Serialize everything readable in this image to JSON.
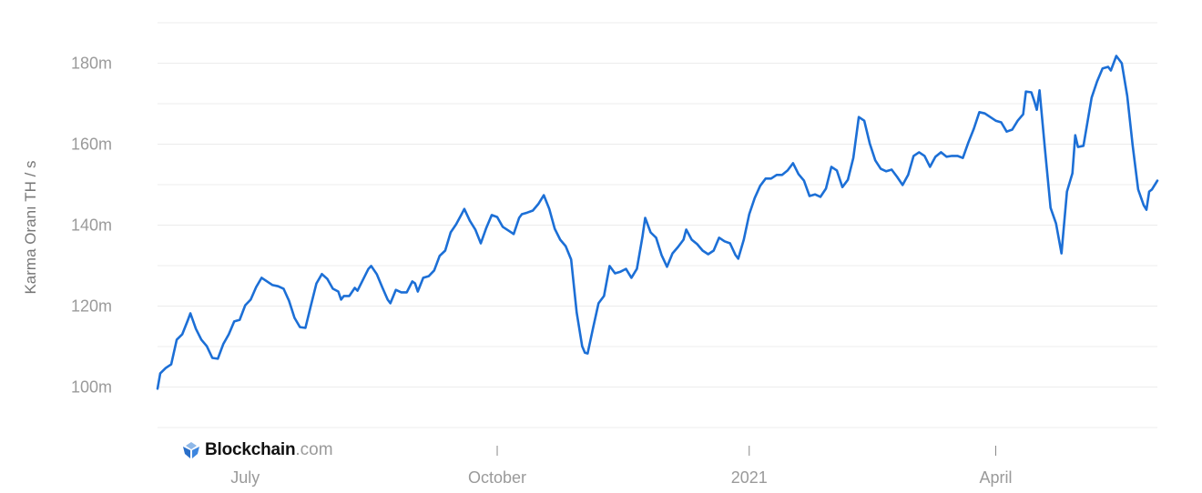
{
  "chart_data": {
    "type": "line",
    "title": "",
    "xlabel": "",
    "ylabel": "Karma Oranı TH / s",
    "ylim": [
      90,
      190
    ],
    "xlim": [
      "2020-05-30",
      "2021-05-30"
    ],
    "grid": true,
    "yticks": [
      {
        "value": 100,
        "label": "100m"
      },
      {
        "value": 120,
        "label": "120m"
      },
      {
        "value": 140,
        "label": "140m"
      },
      {
        "value": 160,
        "label": "160m"
      },
      {
        "value": 180,
        "label": "180m"
      }
    ],
    "ygrid_step": 10,
    "xticks": [
      {
        "date": "2020-07-01",
        "label": "July"
      },
      {
        "date": "2020-10-01",
        "label": "October"
      },
      {
        "date": "2021-01-01",
        "label": "2021"
      },
      {
        "date": "2021-04-01",
        "label": "April"
      }
    ],
    "line_color": "#1c6fd6",
    "points": [
      [
        "2020-05-30",
        99.6
      ],
      [
        "2020-05-31",
        103.4
      ],
      [
        "2020-06-02",
        104.7
      ],
      [
        "2020-06-04",
        105.6
      ],
      [
        "2020-06-06",
        111.7
      ],
      [
        "2020-06-08",
        113.0
      ],
      [
        "2020-06-10",
        116.4
      ],
      [
        "2020-06-11",
        118.2
      ],
      [
        "2020-06-13",
        114.4
      ],
      [
        "2020-06-15",
        111.7
      ],
      [
        "2020-06-17",
        110.1
      ],
      [
        "2020-06-19",
        107.2
      ],
      [
        "2020-06-21",
        107.0
      ],
      [
        "2020-06-23",
        110.6
      ],
      [
        "2020-06-25",
        113.0
      ],
      [
        "2020-06-27",
        116.2
      ],
      [
        "2020-06-29",
        116.6
      ],
      [
        "2020-07-01",
        120.2
      ],
      [
        "2020-07-03",
        121.6
      ],
      [
        "2020-07-05",
        124.7
      ],
      [
        "2020-07-07",
        127.0
      ],
      [
        "2020-07-09",
        126.1
      ],
      [
        "2020-07-11",
        125.2
      ],
      [
        "2020-07-13",
        124.9
      ],
      [
        "2020-07-15",
        124.3
      ],
      [
        "2020-07-17",
        121.3
      ],
      [
        "2020-07-19",
        117.1
      ],
      [
        "2020-07-21",
        114.8
      ],
      [
        "2020-07-23",
        114.6
      ],
      [
        "2020-07-25",
        120.2
      ],
      [
        "2020-07-27",
        125.6
      ],
      [
        "2020-07-29",
        127.9
      ],
      [
        "2020-07-31",
        126.7
      ],
      [
        "2020-08-02",
        124.3
      ],
      [
        "2020-08-04",
        123.6
      ],
      [
        "2020-08-05",
        121.6
      ],
      [
        "2020-08-06",
        122.5
      ],
      [
        "2020-08-08",
        122.5
      ],
      [
        "2020-08-10",
        124.5
      ],
      [
        "2020-08-11",
        123.8
      ],
      [
        "2020-08-13",
        126.5
      ],
      [
        "2020-08-15",
        129.2
      ],
      [
        "2020-08-16",
        129.9
      ],
      [
        "2020-08-18",
        127.9
      ],
      [
        "2020-08-20",
        124.7
      ],
      [
        "2020-08-22",
        121.6
      ],
      [
        "2020-08-23",
        120.7
      ],
      [
        "2020-08-25",
        124.0
      ],
      [
        "2020-08-27",
        123.4
      ],
      [
        "2020-08-29",
        123.4
      ],
      [
        "2020-08-31",
        126.1
      ],
      [
        "2020-09-01",
        125.6
      ],
      [
        "2020-09-02",
        123.6
      ],
      [
        "2020-09-04",
        127.0
      ],
      [
        "2020-09-06",
        127.4
      ],
      [
        "2020-09-08",
        128.8
      ],
      [
        "2020-09-10",
        132.4
      ],
      [
        "2020-09-12",
        133.7
      ],
      [
        "2020-09-14",
        138.2
      ],
      [
        "2020-09-16",
        140.2
      ],
      [
        "2020-09-18",
        142.7
      ],
      [
        "2020-09-19",
        144.0
      ],
      [
        "2020-09-21",
        141.1
      ],
      [
        "2020-09-23",
        138.9
      ],
      [
        "2020-09-25",
        135.5
      ],
      [
        "2020-09-27",
        139.3
      ],
      [
        "2020-09-29",
        142.5
      ],
      [
        "2020-10-01",
        142.0
      ],
      [
        "2020-10-03",
        139.6
      ],
      [
        "2020-10-05",
        138.7
      ],
      [
        "2020-10-07",
        137.8
      ],
      [
        "2020-10-09",
        141.8
      ],
      [
        "2020-10-10",
        142.7
      ],
      [
        "2020-10-12",
        143.1
      ],
      [
        "2020-10-14",
        143.6
      ],
      [
        "2020-10-16",
        145.2
      ],
      [
        "2020-10-18",
        147.4
      ],
      [
        "2020-10-20",
        144.0
      ],
      [
        "2020-10-22",
        139.1
      ],
      [
        "2020-10-24",
        136.4
      ],
      [
        "2020-10-26",
        134.8
      ],
      [
        "2020-10-28",
        131.5
      ],
      [
        "2020-10-30",
        118.4
      ],
      [
        "2020-11-01",
        110.1
      ],
      [
        "2020-11-02",
        108.5
      ],
      [
        "2020-11-03",
        108.3
      ],
      [
        "2020-11-05",
        114.6
      ],
      [
        "2020-11-07",
        120.7
      ],
      [
        "2020-11-09",
        122.5
      ],
      [
        "2020-11-11",
        129.9
      ],
      [
        "2020-11-13",
        128.1
      ],
      [
        "2020-11-15",
        128.5
      ],
      [
        "2020-11-17",
        129.2
      ],
      [
        "2020-11-19",
        127.0
      ],
      [
        "2020-11-21",
        129.2
      ],
      [
        "2020-11-23",
        137.1
      ],
      [
        "2020-11-24",
        141.8
      ],
      [
        "2020-11-26",
        138.2
      ],
      [
        "2020-11-28",
        136.9
      ],
      [
        "2020-11-30",
        132.6
      ],
      [
        "2020-12-02",
        129.7
      ],
      [
        "2020-12-04",
        133.0
      ],
      [
        "2020-12-06",
        134.6
      ],
      [
        "2020-12-08",
        136.4
      ],
      [
        "2020-12-09",
        138.9
      ],
      [
        "2020-12-11",
        136.4
      ],
      [
        "2020-12-13",
        135.3
      ],
      [
        "2020-12-15",
        133.7
      ],
      [
        "2020-12-17",
        132.8
      ],
      [
        "2020-12-19",
        133.7
      ],
      [
        "2020-12-21",
        136.9
      ],
      [
        "2020-12-23",
        136.0
      ],
      [
        "2020-12-25",
        135.5
      ],
      [
        "2020-12-27",
        132.6
      ],
      [
        "2020-12-28",
        131.7
      ],
      [
        "2020-12-30",
        136.4
      ],
      [
        "2021-01-01",
        142.7
      ],
      [
        "2021-01-03",
        146.7
      ],
      [
        "2021-01-05",
        149.7
      ],
      [
        "2021-01-07",
        151.5
      ],
      [
        "2021-01-09",
        151.5
      ],
      [
        "2021-01-11",
        152.4
      ],
      [
        "2021-01-13",
        152.4
      ],
      [
        "2021-01-15",
        153.5
      ],
      [
        "2021-01-17",
        155.3
      ],
      [
        "2021-01-19",
        152.6
      ],
      [
        "2021-01-21",
        151.0
      ],
      [
        "2021-01-23",
        147.2
      ],
      [
        "2021-01-25",
        147.6
      ],
      [
        "2021-01-27",
        147.0
      ],
      [
        "2021-01-29",
        149.0
      ],
      [
        "2021-01-31",
        154.4
      ],
      [
        "2021-02-02",
        153.5
      ],
      [
        "2021-02-04",
        149.4
      ],
      [
        "2021-02-06",
        151.2
      ],
      [
        "2021-02-08",
        156.6
      ],
      [
        "2021-02-10",
        166.7
      ],
      [
        "2021-02-12",
        165.8
      ],
      [
        "2021-02-14",
        160.2
      ],
      [
        "2021-02-16",
        156.0
      ],
      [
        "2021-02-18",
        153.9
      ],
      [
        "2021-02-20",
        153.3
      ],
      [
        "2021-02-22",
        153.7
      ],
      [
        "2021-02-24",
        151.9
      ],
      [
        "2021-02-26",
        149.9
      ],
      [
        "2021-02-28",
        152.4
      ],
      [
        "2021-03-02",
        157.1
      ],
      [
        "2021-03-04",
        158.0
      ],
      [
        "2021-03-06",
        157.1
      ],
      [
        "2021-03-08",
        154.4
      ],
      [
        "2021-03-10",
        156.9
      ],
      [
        "2021-03-12",
        158.0
      ],
      [
        "2021-03-14",
        156.9
      ],
      [
        "2021-03-16",
        157.1
      ],
      [
        "2021-03-18",
        157.1
      ],
      [
        "2021-03-20",
        156.6
      ],
      [
        "2021-03-22",
        160.4
      ],
      [
        "2021-03-24",
        163.8
      ],
      [
        "2021-03-26",
        167.9
      ],
      [
        "2021-03-28",
        167.6
      ],
      [
        "2021-03-30",
        166.7
      ],
      [
        "2021-04-01",
        165.8
      ],
      [
        "2021-04-03",
        165.4
      ],
      [
        "2021-04-05",
        163.1
      ],
      [
        "2021-04-07",
        163.6
      ],
      [
        "2021-04-09",
        165.8
      ],
      [
        "2021-04-11",
        167.4
      ],
      [
        "2021-04-12",
        173.0
      ],
      [
        "2021-04-14",
        172.8
      ],
      [
        "2021-04-15",
        170.8
      ],
      [
        "2021-04-16",
        168.5
      ],
      [
        "2021-04-17",
        173.3
      ],
      [
        "2021-04-19",
        158.4
      ],
      [
        "2021-04-21",
        144.3
      ],
      [
        "2021-04-23",
        140.4
      ],
      [
        "2021-04-25",
        133.0
      ],
      [
        "2021-04-27",
        148.3
      ],
      [
        "2021-04-29",
        152.8
      ],
      [
        "2021-04-30",
        162.2
      ],
      [
        "2021-05-01",
        159.3
      ],
      [
        "2021-05-03",
        159.6
      ],
      [
        "2021-05-06",
        171.5
      ],
      [
        "2021-05-08",
        175.5
      ],
      [
        "2021-05-10",
        178.7
      ],
      [
        "2021-05-12",
        179.1
      ],
      [
        "2021-05-13",
        178.2
      ],
      [
        "2021-05-15",
        181.8
      ],
      [
        "2021-05-17",
        180.0
      ],
      [
        "2021-05-19",
        171.9
      ],
      [
        "2021-05-21",
        159.6
      ],
      [
        "2021-05-23",
        148.8
      ],
      [
        "2021-05-25",
        144.9
      ],
      [
        "2021-05-26",
        143.8
      ],
      [
        "2021-05-27",
        148.3
      ],
      [
        "2021-05-28",
        148.8
      ],
      [
        "2021-05-30",
        151.0
      ]
    ]
  },
  "branding": {
    "name": "Blockchain",
    "suffix": ".com",
    "logo_icon": "blockchain-cube-icon"
  }
}
